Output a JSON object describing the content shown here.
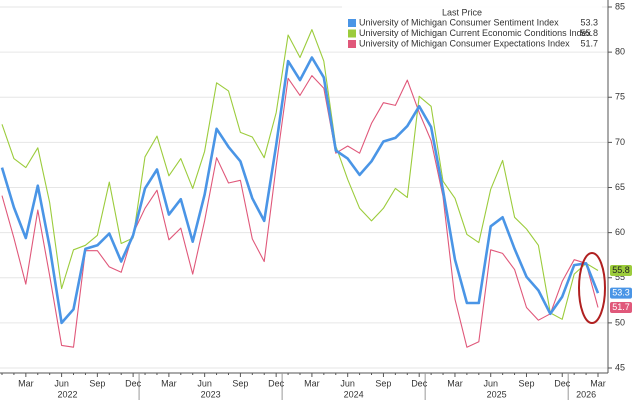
{
  "chart_data": {
    "type": "line",
    "legend_title": "Last Price",
    "categories": [
      null,
      null,
      "Mar",
      null,
      null,
      "Jun",
      null,
      null,
      "Sep",
      null,
      null,
      "Dec",
      null,
      null,
      "Mar",
      null,
      null,
      "Jun",
      null,
      null,
      "Sep",
      null,
      null,
      "Dec",
      null,
      null,
      "Mar",
      null,
      null,
      "Jun",
      null,
      null,
      "Sep",
      null,
      null,
      "Dec",
      null,
      null,
      "Mar",
      null,
      null,
      "Jun",
      null,
      null,
      "Sep",
      null,
      null,
      "Dec",
      null,
      null,
      "Mar"
    ],
    "year_groups": [
      {
        "label": "2022",
        "months": 12
      },
      {
        "label": "2023",
        "months": 12
      },
      {
        "label": "2024",
        "months": 12
      },
      {
        "label": "2025",
        "months": 12
      },
      {
        "label": "2026",
        "months": 3
      }
    ],
    "series": [
      {
        "name": "University of Michigan Consumer Sentiment Index",
        "color": "#4a95e6",
        "values": [
          67.2,
          62.8,
          59.4,
          65.2,
          58.4,
          50.0,
          51.5,
          58.2,
          58.6,
          59.9,
          56.8,
          59.7,
          64.9,
          67.0,
          62.0,
          63.7,
          59.0,
          64.2,
          71.5,
          69.5,
          67.9,
          63.8,
          61.3,
          69.7,
          79.0,
          76.9,
          79.4,
          77.2,
          69.1,
          68.2,
          66.4,
          67.9,
          70.1,
          70.5,
          71.8,
          74.0,
          71.7,
          64.7,
          57.0,
          52.2,
          52.2,
          60.7,
          61.7,
          58.2,
          55.1,
          53.6,
          51.0,
          52.9,
          56.4,
          56.6,
          53.3
        ]
      },
      {
        "name": "University of Michigan Current Economic Conditions Index",
        "color": "#9ccc3c",
        "values": [
          72.0,
          68.2,
          67.2,
          69.4,
          63.3,
          53.8,
          58.1,
          58.6,
          59.7,
          65.6,
          58.8,
          59.4,
          68.4,
          70.7,
          66.3,
          68.2,
          64.9,
          69.0,
          76.6,
          75.7,
          71.1,
          70.6,
          68.3,
          73.3,
          81.9,
          79.4,
          82.5,
          79.0,
          69.6,
          65.9,
          62.7,
          61.3,
          62.7,
          64.9,
          63.9,
          75.1,
          74.0,
          65.7,
          63.8,
          59.8,
          58.9,
          64.8,
          68.0,
          61.7,
          60.4,
          58.6,
          51.1,
          50.4,
          55.4,
          56.6,
          55.8
        ]
      },
      {
        "name": "University of Michigan Consumer Expectations Index",
        "color": "#e0587a",
        "values": [
          64.1,
          59.4,
          54.3,
          62.5,
          55.2,
          47.5,
          47.3,
          58.0,
          58.0,
          56.2,
          55.6,
          59.9,
          62.7,
          64.7,
          59.2,
          60.5,
          55.4,
          61.3,
          68.3,
          65.5,
          65.8,
          59.3,
          56.8,
          67.4,
          77.1,
          75.2,
          77.4,
          76.0,
          68.8,
          69.6,
          68.8,
          72.1,
          74.4,
          74.1,
          76.9,
          73.3,
          70.2,
          64.0,
          52.6,
          47.3,
          47.9,
          58.1,
          57.7,
          55.9,
          51.7,
          50.3,
          51.0,
          54.6,
          57.0,
          56.6,
          51.7
        ]
      }
    ],
    "ylim": [
      45,
      85
    ],
    "yticks": [
      45,
      50,
      55,
      60,
      65,
      70,
      75,
      80,
      85
    ],
    "grid": true
  }
}
